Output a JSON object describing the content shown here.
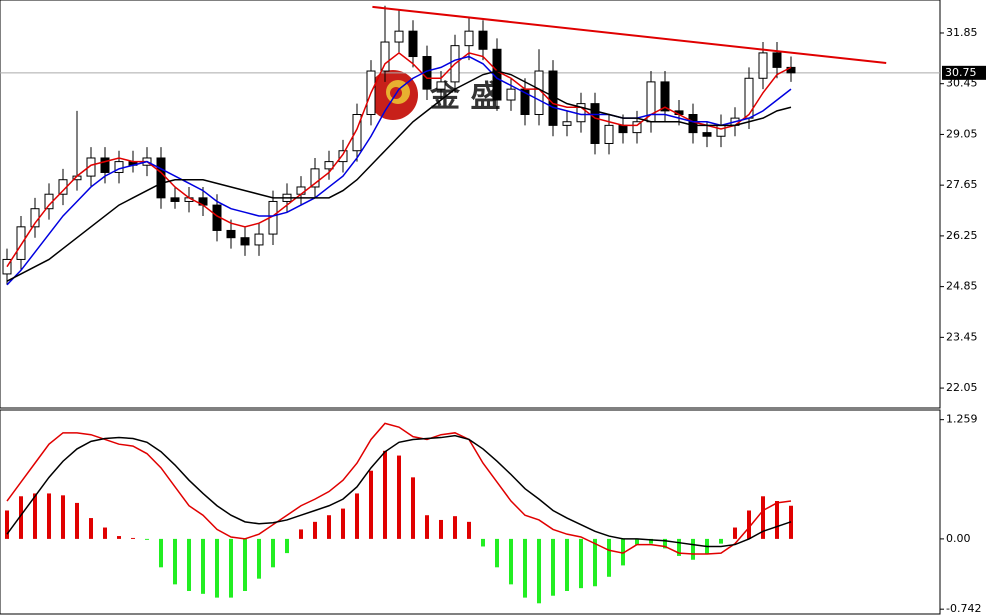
{
  "chart_data": [
    {
      "type": "candlestick",
      "open": [
        25.2,
        25.6,
        26.5,
        27.0,
        27.4,
        27.8,
        27.9,
        28.4,
        28.0,
        28.3,
        28.2,
        28.4,
        27.3,
        27.2,
        27.3,
        27.1,
        26.4,
        26.2,
        26.0,
        26.3,
        27.2,
        27.4,
        27.6,
        28.1,
        28.3,
        28.6,
        29.6,
        30.8,
        31.6,
        31.9,
        31.2,
        30.3,
        30.5,
        31.5,
        31.9,
        31.4,
        30.0,
        30.3,
        29.6,
        30.8,
        29.3,
        29.4,
        29.9,
        28.8,
        29.3,
        29.1,
        29.4,
        30.5,
        29.7,
        29.6,
        29.1,
        29.0,
        29.3,
        29.5,
        30.6,
        31.3,
        30.9
      ],
      "high": [
        25.9,
        26.8,
        27.3,
        27.7,
        28.1,
        29.7,
        28.7,
        28.7,
        28.6,
        28.6,
        28.7,
        28.7,
        27.6,
        27.6,
        27.6,
        27.4,
        26.7,
        26.5,
        26.6,
        27.5,
        27.7,
        27.9,
        28.4,
        28.6,
        28.9,
        29.9,
        31.1,
        32.6,
        32.5,
        32.2,
        31.5,
        30.8,
        31.8,
        32.3,
        32.2,
        31.7,
        30.6,
        30.6,
        31.4,
        31.1,
        29.7,
        30.2,
        30.2,
        29.6,
        29.6,
        29.7,
        30.8,
        30.8,
        30.0,
        29.9,
        29.4,
        29.6,
        29.8,
        30.9,
        31.6,
        31.6,
        31.2
      ],
      "low": [
        24.9,
        25.3,
        26.2,
        26.7,
        27.1,
        27.5,
        27.6,
        27.7,
        27.7,
        28.0,
        27.9,
        27.0,
        27.0,
        26.9,
        26.8,
        26.1,
        25.9,
        25.7,
        25.7,
        26.0,
        26.9,
        27.1,
        27.3,
        27.8,
        28.0,
        28.3,
        29.3,
        30.5,
        31.3,
        30.9,
        30.0,
        30.0,
        30.2,
        31.1,
        31.1,
        29.7,
        29.7,
        29.3,
        29.3,
        29.0,
        29.0,
        29.1,
        28.5,
        28.5,
        28.8,
        28.8,
        29.1,
        29.4,
        29.3,
        28.8,
        28.7,
        28.7,
        29.0,
        29.2,
        30.3,
        30.6,
        30.5
      ],
      "close": [
        25.6,
        26.5,
        27.0,
        27.4,
        27.8,
        27.9,
        28.4,
        28.0,
        28.3,
        28.2,
        28.4,
        27.3,
        27.2,
        27.3,
        27.1,
        26.4,
        26.2,
        26.0,
        26.3,
        27.2,
        27.4,
        27.6,
        28.1,
        28.3,
        28.6,
        29.6,
        30.8,
        31.6,
        31.9,
        31.2,
        30.3,
        30.5,
        31.5,
        31.9,
        31.4,
        30.0,
        30.3,
        29.6,
        30.8,
        29.3,
        29.4,
        29.9,
        28.8,
        29.3,
        29.1,
        29.4,
        30.5,
        29.7,
        29.6,
        29.1,
        29.0,
        29.3,
        29.5,
        30.6,
        31.3,
        30.9,
        30.75
      ],
      "series": [
        {
          "color": "#e00000",
          "values": [
            25.4,
            26.0,
            26.6,
            27.1,
            27.5,
            27.9,
            28.2,
            28.3,
            28.4,
            28.3,
            28.3,
            28.0,
            27.6,
            27.3,
            27.1,
            26.8,
            26.6,
            26.5,
            26.6,
            26.8,
            27.1,
            27.4,
            27.7,
            28.0,
            28.5,
            29.2,
            30.2,
            31.0,
            31.3,
            31.0,
            30.6,
            30.6,
            31.0,
            31.3,
            31.2,
            30.8,
            30.6,
            30.3,
            30.3,
            29.9,
            29.8,
            29.8,
            29.5,
            29.4,
            29.3,
            29.3,
            29.6,
            29.8,
            29.6,
            29.4,
            29.3,
            29.2,
            29.3,
            29.6,
            30.2,
            30.7,
            30.9
          ]
        },
        {
          "color": "#0000e0",
          "values": [
            24.9,
            25.3,
            25.8,
            26.3,
            26.8,
            27.2,
            27.6,
            27.9,
            28.1,
            28.2,
            28.3,
            28.1,
            27.9,
            27.7,
            27.5,
            27.2,
            27.0,
            26.9,
            26.8,
            26.8,
            26.9,
            27.1,
            27.3,
            27.6,
            27.9,
            28.4,
            29.0,
            29.7,
            30.3,
            30.6,
            30.8,
            30.9,
            31.1,
            31.2,
            31.0,
            30.6,
            30.4,
            30.2,
            30.0,
            29.8,
            29.7,
            29.6,
            29.6,
            29.6,
            29.5,
            29.5,
            29.6,
            29.6,
            29.5,
            29.4,
            29.4,
            29.3,
            29.4,
            29.5,
            29.7,
            30.0,
            30.3
          ]
        },
        {
          "color": "#000000",
          "values": [
            25.0,
            25.2,
            25.4,
            25.6,
            25.9,
            26.2,
            26.5,
            26.8,
            27.1,
            27.3,
            27.5,
            27.7,
            27.8,
            27.8,
            27.8,
            27.7,
            27.6,
            27.5,
            27.4,
            27.3,
            27.3,
            27.3,
            27.3,
            27.3,
            27.5,
            27.8,
            28.2,
            28.6,
            29.0,
            29.4,
            29.7,
            30.0,
            30.3,
            30.5,
            30.7,
            30.8,
            30.7,
            30.5,
            30.3,
            30.1,
            29.9,
            29.8,
            29.7,
            29.6,
            29.5,
            29.5,
            29.4,
            29.4,
            29.4,
            29.3,
            29.3,
            29.3,
            29.3,
            29.4,
            29.5,
            29.7,
            29.8
          ]
        }
      ],
      "trendline": {
        "index": [
          26.1,
          62.8
        ],
        "values": [
          32.57,
          31.02
        ],
        "color": "#e00000"
      },
      "current_price": 30.75,
      "watermark": "金 盛",
      "ylim": [
        21.5,
        32.76
      ],
      "yticks": [
        31.85,
        30.45,
        29.05,
        27.65,
        26.25,
        24.85,
        23.45,
        22.05
      ]
    },
    {
      "type": "macd",
      "histogram": [
        0.3,
        0.45,
        0.48,
        0.48,
        0.46,
        0.38,
        0.22,
        0.12,
        0.03,
        0.01,
        -0.01,
        -0.3,
        -0.48,
        -0.55,
        -0.58,
        -0.62,
        -0.62,
        -0.55,
        -0.42,
        -0.3,
        -0.15,
        0.1,
        0.18,
        0.25,
        0.32,
        0.48,
        0.72,
        0.93,
        0.88,
        0.65,
        0.25,
        0.2,
        0.24,
        0.18,
        -0.08,
        -0.3,
        -0.48,
        -0.62,
        -0.68,
        -0.6,
        -0.55,
        -0.52,
        -0.5,
        -0.4,
        -0.28,
        -0.06,
        -0.05,
        -0.1,
        -0.18,
        -0.22,
        -0.16,
        -0.05,
        0.12,
        0.3,
        0.45,
        0.4,
        0.35
      ],
      "up_color": "#e00000",
      "down_color": "#22ee22",
      "series": [
        {
          "color": "#e00000",
          "values": [
            0.4,
            0.6,
            0.8,
            1.0,
            1.12,
            1.12,
            1.1,
            1.05,
            1.0,
            0.98,
            0.9,
            0.75,
            0.55,
            0.35,
            0.25,
            0.1,
            0.02,
            0.0,
            0.05,
            0.15,
            0.25,
            0.35,
            0.42,
            0.5,
            0.62,
            0.8,
            1.05,
            1.22,
            1.18,
            1.08,
            1.05,
            1.1,
            1.12,
            1.05,
            0.8,
            0.6,
            0.4,
            0.25,
            0.2,
            0.1,
            0.05,
            0.02,
            -0.05,
            -0.12,
            -0.15,
            -0.06,
            -0.06,
            -0.08,
            -0.15,
            -0.16,
            -0.16,
            -0.15,
            -0.05,
            0.12,
            0.3,
            0.38,
            0.4
          ]
        },
        {
          "color": "#000000",
          "values": [
            0.05,
            0.25,
            0.45,
            0.65,
            0.82,
            0.95,
            1.03,
            1.06,
            1.07,
            1.06,
            1.02,
            0.92,
            0.78,
            0.62,
            0.48,
            0.35,
            0.25,
            0.18,
            0.16,
            0.17,
            0.2,
            0.25,
            0.3,
            0.35,
            0.42,
            0.55,
            0.75,
            0.92,
            1.02,
            1.05,
            1.06,
            1.07,
            1.09,
            1.05,
            0.95,
            0.82,
            0.68,
            0.53,
            0.42,
            0.3,
            0.22,
            0.15,
            0.08,
            0.03,
            0.0,
            0.0,
            -0.01,
            -0.02,
            -0.04,
            -0.06,
            -0.08,
            -0.08,
            -0.06,
            0.0,
            0.08,
            0.13,
            0.18
          ]
        }
      ],
      "ylim": [
        -0.793,
        1.361
      ],
      "yticks": [
        1.259,
        {
          "value": 0,
          "label": "0.00"
        },
        -0.742
      ]
    }
  ]
}
